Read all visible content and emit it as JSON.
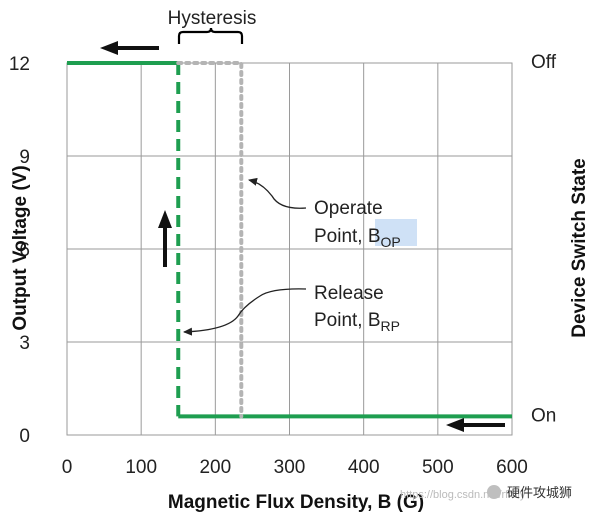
{
  "chart_data": {
    "type": "line",
    "title": "",
    "xlabel": "Magnetic Flux Density, B (G)",
    "ylabel": "Output Voltage (V)",
    "ylabel_right": "Device Switch State",
    "xlim": [
      0,
      600
    ],
    "ylim": [
      0,
      12
    ],
    "x_ticks": [
      0,
      100,
      200,
      300,
      400,
      500,
      600
    ],
    "y_ticks": [
      0,
      3,
      6,
      9,
      12
    ],
    "right_ticks": [
      {
        "y": 12,
        "label": "Off"
      },
      {
        "y": 0.6,
        "label": "On"
      }
    ],
    "grid": true,
    "colors": {
      "output": "#1e9e50",
      "hysteresis": "#b4b4b4",
      "arrow": "#111111"
    },
    "series": [
      {
        "style": "solid",
        "x": [
          0,
          150
        ],
        "y": [
          12,
          12
        ]
      },
      {
        "style": "dashed",
        "x": [
          150,
          150
        ],
        "y": [
          12,
          0.6
        ]
      },
      {
        "style": "solid",
        "x": [
          150,
          600
        ],
        "y": [
          0.6,
          0.6
        ]
      }
    ],
    "hysteresis_box": {
      "x": [
        150,
        235
      ],
      "y": [
        0.6,
        12
      ]
    },
    "annotations": {
      "hysteresis": "Hysteresis",
      "operate_line1": "Operate",
      "operate_line2": "Point, B",
      "operate_sub": "OP",
      "release_line1": "Release",
      "release_line2": "Point, B",
      "release_sub": "RP"
    }
  },
  "watermark": {
    "url": "https://blog.csdn.net/rfmly",
    "brand": "硬件攻城狮"
  }
}
